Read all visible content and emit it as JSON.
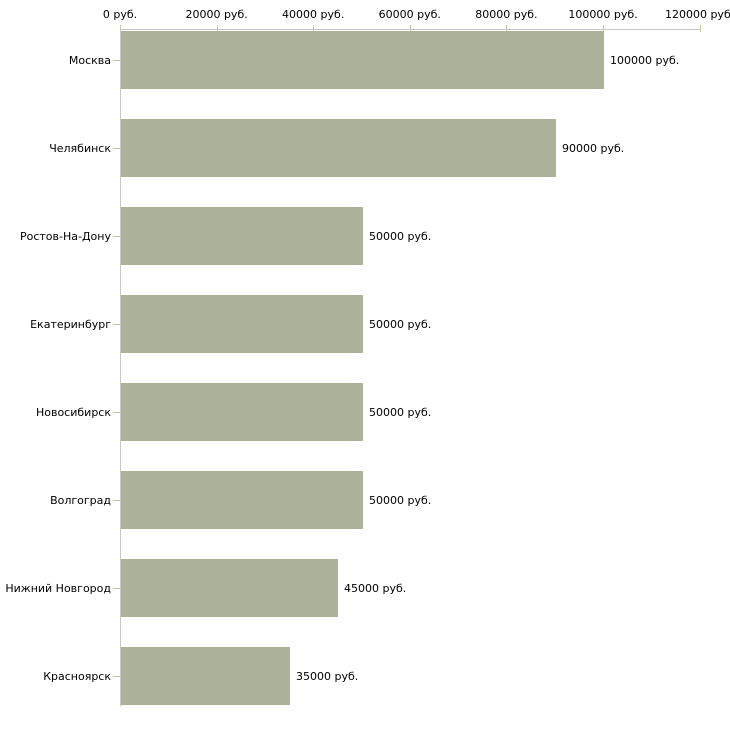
{
  "chart_data": {
    "type": "bar",
    "orientation": "horizontal",
    "title": "",
    "xlabel": "",
    "ylabel": "",
    "unit": "руб.",
    "categories": [
      "Москва",
      "Челябинск",
      "Ростов-На-Дону",
      "Екатеринбург",
      "Новосибирск",
      "Волгоград",
      "Нижний Новгород",
      "Красноярск"
    ],
    "values": [
      100000,
      90000,
      50000,
      50000,
      50000,
      50000,
      45000,
      35000
    ],
    "value_labels": [
      "100000 руб.",
      "90000 руб.",
      "50000 руб.",
      "50000 руб.",
      "50000 руб.",
      "50000 руб.",
      "45000 руб.",
      "35000 руб."
    ],
    "x_ticks": [
      0,
      20000,
      40000,
      60000,
      80000,
      100000,
      120000
    ],
    "x_tick_labels": [
      "0 руб.",
      "20000 руб.",
      "40000 руб.",
      "60000 руб.",
      "80000 руб.",
      "100000 руб.",
      "120000 руб."
    ],
    "xlim": [
      0,
      120000
    ],
    "grid": false,
    "legend": null,
    "colors": {
      "bar": "#adb29b",
      "axis_line": "#c8c8c8",
      "tick_mark": "#c6c69c",
      "text": "#000000",
      "background": "#ffffff"
    }
  }
}
